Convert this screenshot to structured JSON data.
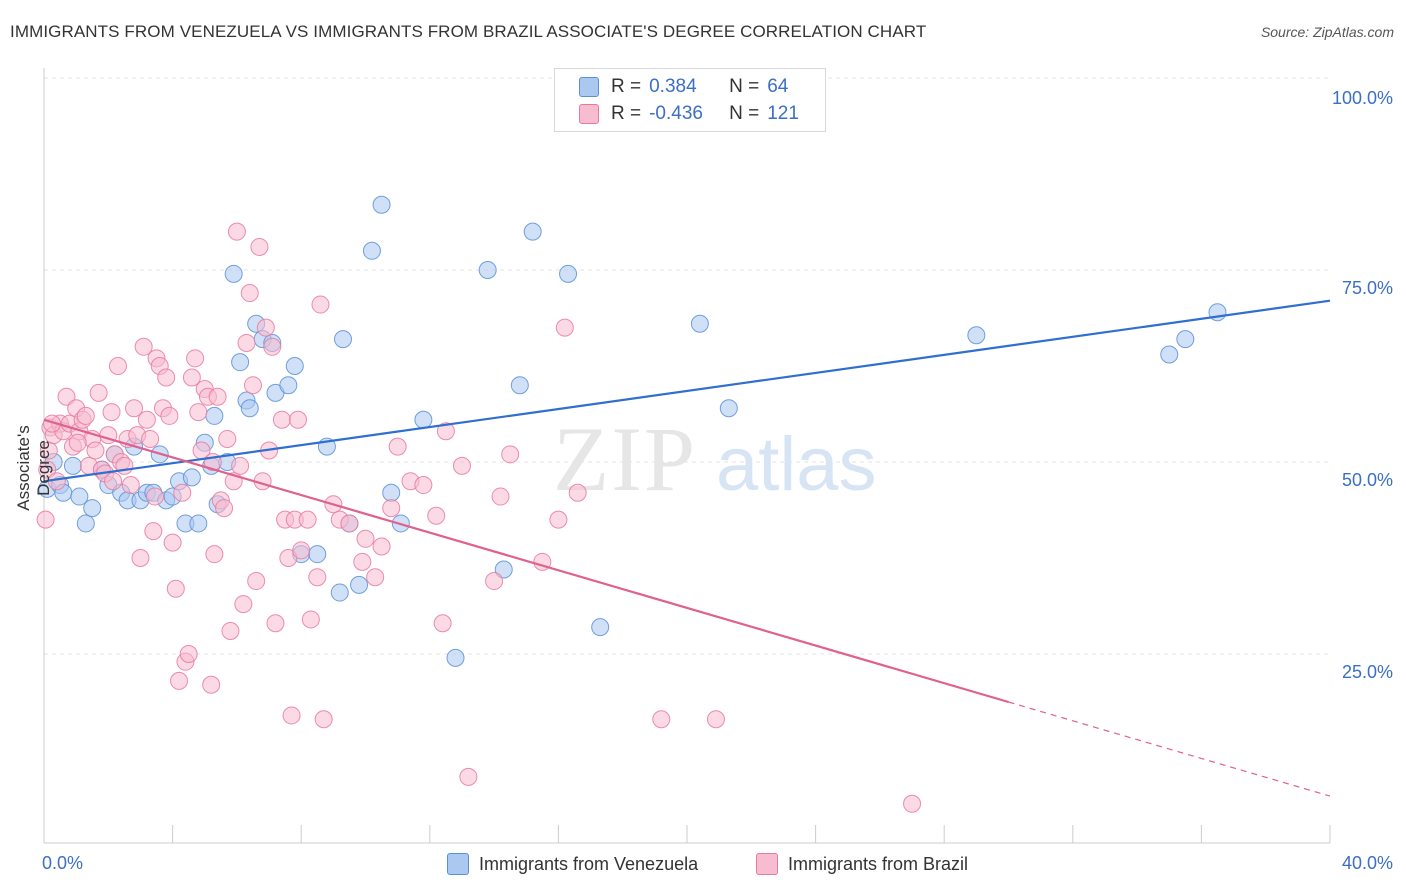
{
  "title": "IMMIGRANTS FROM VENEZUELA VS IMMIGRANTS FROM BRAZIL ASSOCIATE'S DEGREE CORRELATION CHART",
  "source": "Source: ZipAtlas.com",
  "watermark": {
    "zip": "ZIP",
    "atlas": "atlas"
  },
  "legend": {
    "rows": [
      {
        "r_label": "R =",
        "r_value": "0.384",
        "n_label": "N =",
        "n_value": "64",
        "color": "#aac8f0",
        "border": "#5b8fd8"
      },
      {
        "r_label": "R =",
        "r_value": "-0.436",
        "n_label": "N =",
        "n_value": "121",
        "color": "#f7bcd0",
        "border": "#e87aa0"
      }
    ]
  },
  "bottom_legend": [
    {
      "label": "Immigrants from Venezuela",
      "color": "#aac8f0",
      "border": "#5b8fd8"
    },
    {
      "label": "Immigrants from Brazil",
      "color": "#f7bcd0",
      "border": "#e87aa0"
    }
  ],
  "chart_data": {
    "type": "scatter",
    "title": "IMMIGRANTS FROM VENEZUELA VS IMMIGRANTS FROM BRAZIL ASSOCIATE'S DEGREE CORRELATION CHART",
    "xlabel": "",
    "ylabel": "Associate's Degree",
    "xlim": [
      0,
      40
    ],
    "ylim": [
      0,
      100
    ],
    "x_tick_labels": [
      "0.0%",
      "40.0%"
    ],
    "y_tick_labels": [
      {
        "value": 100,
        "label": "100.0%"
      },
      {
        "value": 75,
        "label": "75.0%"
      },
      {
        "value": 50,
        "label": "50.0%"
      },
      {
        "value": 25,
        "label": "25.0%"
      }
    ],
    "grid": true,
    "legend_position": "top-center",
    "series": [
      {
        "name": "Immigrants from Venezuela",
        "color": "#5b8fd8",
        "fill": "#aac8f0",
        "trend": {
          "x": [
            0,
            40
          ],
          "y": [
            47.5,
            71.0
          ],
          "dashed_from": null,
          "line_color": "#2f6fd0"
        },
        "points": [
          [
            0.1,
            46.5
          ],
          [
            0.3,
            50.0
          ],
          [
            0.5,
            47.0
          ],
          [
            0.6,
            46.0
          ],
          [
            0.9,
            49.5
          ],
          [
            1.1,
            45.5
          ],
          [
            1.3,
            42.0
          ],
          [
            1.5,
            44.0
          ],
          [
            1.8,
            49.0
          ],
          [
            2.0,
            47.0
          ],
          [
            2.2,
            51.0
          ],
          [
            2.4,
            46.0
          ],
          [
            2.6,
            45.0
          ],
          [
            2.8,
            52.0
          ],
          [
            3.0,
            45.0
          ],
          [
            3.2,
            46.0
          ],
          [
            3.4,
            46.0
          ],
          [
            3.6,
            51.0
          ],
          [
            3.8,
            45.0
          ],
          [
            4.0,
            45.5
          ],
          [
            4.2,
            47.5
          ],
          [
            4.4,
            42.0
          ],
          [
            4.6,
            48.0
          ],
          [
            4.8,
            42.0
          ],
          [
            5.0,
            52.5
          ],
          [
            5.2,
            49.5
          ],
          [
            5.3,
            56.0
          ],
          [
            5.4,
            44.5
          ],
          [
            5.7,
            50.0
          ],
          [
            5.9,
            74.5
          ],
          [
            6.1,
            63.0
          ],
          [
            6.3,
            58.0
          ],
          [
            6.4,
            57.0
          ],
          [
            6.6,
            68.0
          ],
          [
            6.8,
            66.0
          ],
          [
            7.1,
            65.5
          ],
          [
            7.2,
            59.0
          ],
          [
            7.6,
            60.0
          ],
          [
            7.8,
            62.5
          ],
          [
            8.0,
            38.0
          ],
          [
            8.5,
            38.0
          ],
          [
            8.8,
            52.0
          ],
          [
            9.2,
            33.0
          ],
          [
            9.3,
            66.0
          ],
          [
            9.5,
            42.0
          ],
          [
            9.8,
            34.0
          ],
          [
            10.2,
            77.5
          ],
          [
            10.5,
            83.5
          ],
          [
            10.8,
            46.0
          ],
          [
            11.1,
            42.0
          ],
          [
            11.8,
            55.5
          ],
          [
            12.8,
            24.5
          ],
          [
            13.8,
            75.0
          ],
          [
            14.3,
            36.0
          ],
          [
            14.8,
            60.0
          ],
          [
            15.2,
            80.0
          ],
          [
            16.3,
            74.5
          ],
          [
            17.3,
            28.5
          ],
          [
            20.4,
            68.0
          ],
          [
            21.3,
            57.0
          ],
          [
            29.0,
            66.5
          ],
          [
            35.0,
            64.0
          ],
          [
            35.5,
            66.0
          ],
          [
            36.5,
            69.5
          ]
        ]
      },
      {
        "name": "Immigrants from Brazil",
        "color": "#e87aa0",
        "fill": "#f7bcd0",
        "trend": {
          "x": [
            0,
            40
          ],
          "y": [
            55.5,
            6.5
          ],
          "dashed_from": 30,
          "line_color": "#e0608e"
        },
        "points": [
          [
            0.05,
            42.5
          ],
          [
            0.1,
            49.0
          ],
          [
            0.15,
            51.5
          ],
          [
            0.2,
            54.5
          ],
          [
            0.3,
            53.5
          ],
          [
            0.4,
            47.5
          ],
          [
            0.5,
            55.0
          ],
          [
            0.6,
            54.0
          ],
          [
            0.7,
            58.5
          ],
          [
            0.8,
            55.0
          ],
          [
            0.9,
            52.0
          ],
          [
            1.0,
            57.0
          ],
          [
            1.1,
            54.0
          ],
          [
            1.2,
            55.5
          ],
          [
            1.3,
            56.0
          ],
          [
            1.4,
            49.5
          ],
          [
            1.5,
            53.0
          ],
          [
            1.6,
            51.5
          ],
          [
            1.7,
            59.0
          ],
          [
            1.8,
            49.0
          ],
          [
            1.9,
            48.5
          ],
          [
            2.0,
            53.5
          ],
          [
            2.1,
            56.5
          ],
          [
            2.2,
            51.0
          ],
          [
            2.3,
            62.5
          ],
          [
            2.4,
            50.0
          ],
          [
            2.5,
            49.5
          ],
          [
            2.6,
            53.0
          ],
          [
            2.7,
            47.0
          ],
          [
            2.8,
            57.0
          ],
          [
            2.9,
            53.5
          ],
          [
            3.0,
            37.5
          ],
          [
            3.1,
            65.0
          ],
          [
            3.2,
            55.5
          ],
          [
            3.3,
            53.0
          ],
          [
            3.4,
            41.0
          ],
          [
            3.5,
            63.5
          ],
          [
            3.6,
            62.5
          ],
          [
            3.7,
            57.0
          ],
          [
            3.8,
            61.0
          ],
          [
            3.9,
            56.0
          ],
          [
            4.0,
            39.5
          ],
          [
            4.1,
            33.5
          ],
          [
            4.2,
            21.5
          ],
          [
            4.3,
            46.0
          ],
          [
            4.4,
            24.0
          ],
          [
            4.5,
            25.0
          ],
          [
            4.6,
            61.0
          ],
          [
            4.7,
            63.5
          ],
          [
            4.8,
            56.5
          ],
          [
            4.9,
            51.5
          ],
          [
            5.0,
            59.5
          ],
          [
            5.1,
            58.5
          ],
          [
            5.2,
            21.0
          ],
          [
            5.3,
            38.0
          ],
          [
            5.4,
            58.5
          ],
          [
            5.5,
            45.0
          ],
          [
            5.6,
            44.0
          ],
          [
            5.7,
            53.0
          ],
          [
            5.8,
            28.0
          ],
          [
            5.9,
            47.5
          ],
          [
            6.0,
            80.0
          ],
          [
            6.1,
            49.5
          ],
          [
            6.2,
            31.5
          ],
          [
            6.3,
            65.5
          ],
          [
            6.4,
            72.0
          ],
          [
            6.5,
            60.0
          ],
          [
            6.6,
            34.5
          ],
          [
            6.7,
            78.0
          ],
          [
            6.8,
            47.5
          ],
          [
            6.9,
            67.5
          ],
          [
            7.0,
            51.5
          ],
          [
            7.1,
            65.0
          ],
          [
            7.2,
            29.0
          ],
          [
            7.4,
            55.5
          ],
          [
            7.5,
            42.5
          ],
          [
            7.6,
            37.5
          ],
          [
            7.7,
            17.0
          ],
          [
            7.8,
            42.5
          ],
          [
            7.9,
            55.5
          ],
          [
            8.0,
            38.5
          ],
          [
            8.2,
            42.5
          ],
          [
            8.3,
            29.5
          ],
          [
            8.5,
            35.0
          ],
          [
            8.6,
            70.5
          ],
          [
            8.7,
            16.5
          ],
          [
            9.0,
            44.5
          ],
          [
            9.2,
            42.5
          ],
          [
            9.5,
            42.0
          ],
          [
            9.9,
            37.0
          ],
          [
            10.0,
            40.0
          ],
          [
            10.3,
            35.0
          ],
          [
            10.5,
            39.0
          ],
          [
            10.8,
            44.0
          ],
          [
            11.0,
            52.0
          ],
          [
            11.4,
            47.5
          ],
          [
            11.8,
            47.0
          ],
          [
            12.2,
            43.0
          ],
          [
            12.5,
            54.0
          ],
          [
            12.4,
            29.0
          ],
          [
            13.0,
            49.5
          ],
          [
            13.2,
            9.0
          ],
          [
            14.0,
            34.5
          ],
          [
            14.2,
            45.5
          ],
          [
            14.5,
            51.0
          ],
          [
            15.5,
            37.0
          ],
          [
            16.0,
            42.5
          ],
          [
            16.2,
            67.5
          ],
          [
            16.6,
            46.0
          ],
          [
            19.2,
            16.5
          ],
          [
            20.9,
            16.5
          ],
          [
            27.0,
            5.5
          ],
          [
            0.25,
            55.0
          ],
          [
            1.05,
            52.5
          ],
          [
            2.15,
            47.5
          ],
          [
            3.45,
            45.5
          ],
          [
            5.25,
            50.0
          ]
        ]
      }
    ]
  }
}
